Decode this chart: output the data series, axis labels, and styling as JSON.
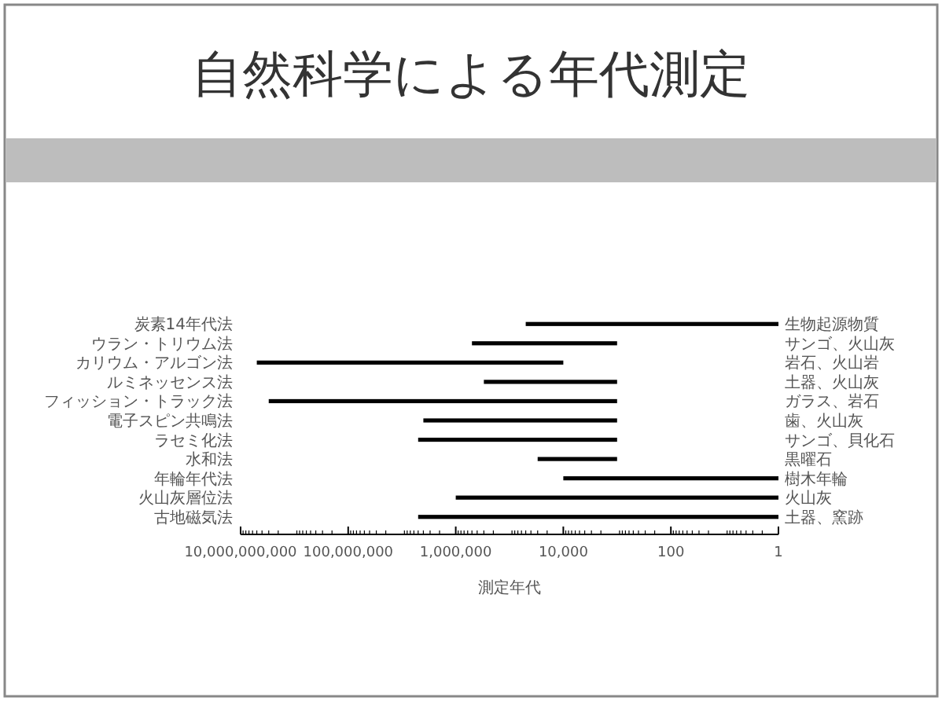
{
  "chart_data": {
    "type": "bar",
    "orientation": "horizontal",
    "log": "x",
    "title": "自然科学による年代測定",
    "xlabel": "測定年代",
    "categories": [
      "炭素14年代法",
      "ウラン・トリウム法",
      "カリウム・アルゴン法",
      "ルミネッセンス法",
      "フィッション・トラック法",
      "電子スピン共鳴法",
      "ラセミ化法",
      "水和法",
      "年輪年代法",
      "火山灰層位法",
      "古地磁気法"
    ],
    "base": [
      1,
      1000,
      10000,
      1000,
      1000,
      1000,
      1000,
      1000,
      1,
      1,
      1
    ],
    "values": [
      49999,
      499000,
      4999990000,
      299000,
      2999999000,
      3999000,
      4999000,
      29000,
      9999,
      999999,
      4999999
    ],
    "color": "#000000",
    "xlim": [
      10000000000,
      1
    ],
    "xticks": [
      {
        "value": 10000000000,
        "label": "10,000,000,000"
      },
      {
        "value": 100000000,
        "label": "100,000,000"
      },
      {
        "value": 1000000,
        "label": "1,000,000"
      },
      {
        "value": 10000,
        "label": "10,000"
      },
      {
        "value": 100,
        "label": "100"
      },
      1
    ],
    "annotations": [
      "生物起源物質",
      "サンゴ、火山灰",
      "岩石、火山岩",
      "土器、火山灰",
      "ガラス、岩石",
      "歯、火山灰",
      "サンゴ、貝化石",
      "黒曜石",
      "樹木年輪",
      "火山灰",
      "土器、窯跡"
    ]
  }
}
